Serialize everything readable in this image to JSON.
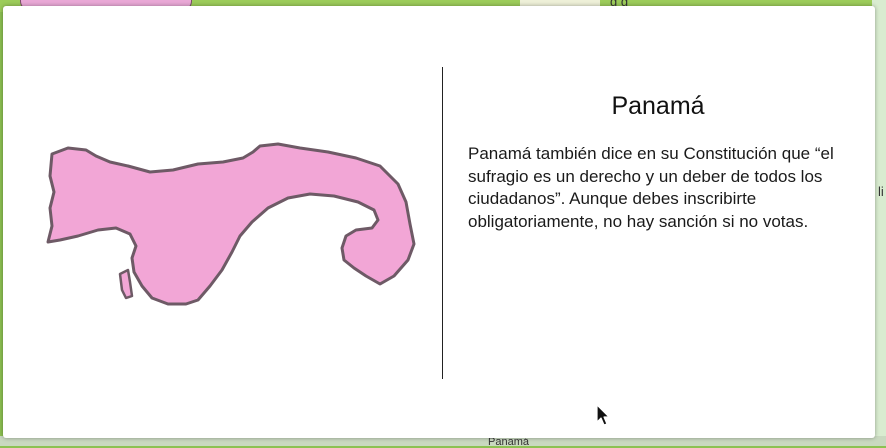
{
  "background": {
    "top_text": "g g",
    "bottom_label": "Panamá",
    "side_glyph": "li"
  },
  "modal": {
    "country_title": "Panamá",
    "description": "Panamá también dice en su Constitución que “el sufragio es un derecho y un deber de todos los ciudadanos”. Aunque debes inscribirte obligatoriamente, no hay sanción si no votas.",
    "map_icon": "panama-map-icon",
    "map_fill_color": "#f2a6d6",
    "map_outline_color": "#6e5a66"
  },
  "cursor": {
    "icon": "arrow-cursor-icon"
  }
}
